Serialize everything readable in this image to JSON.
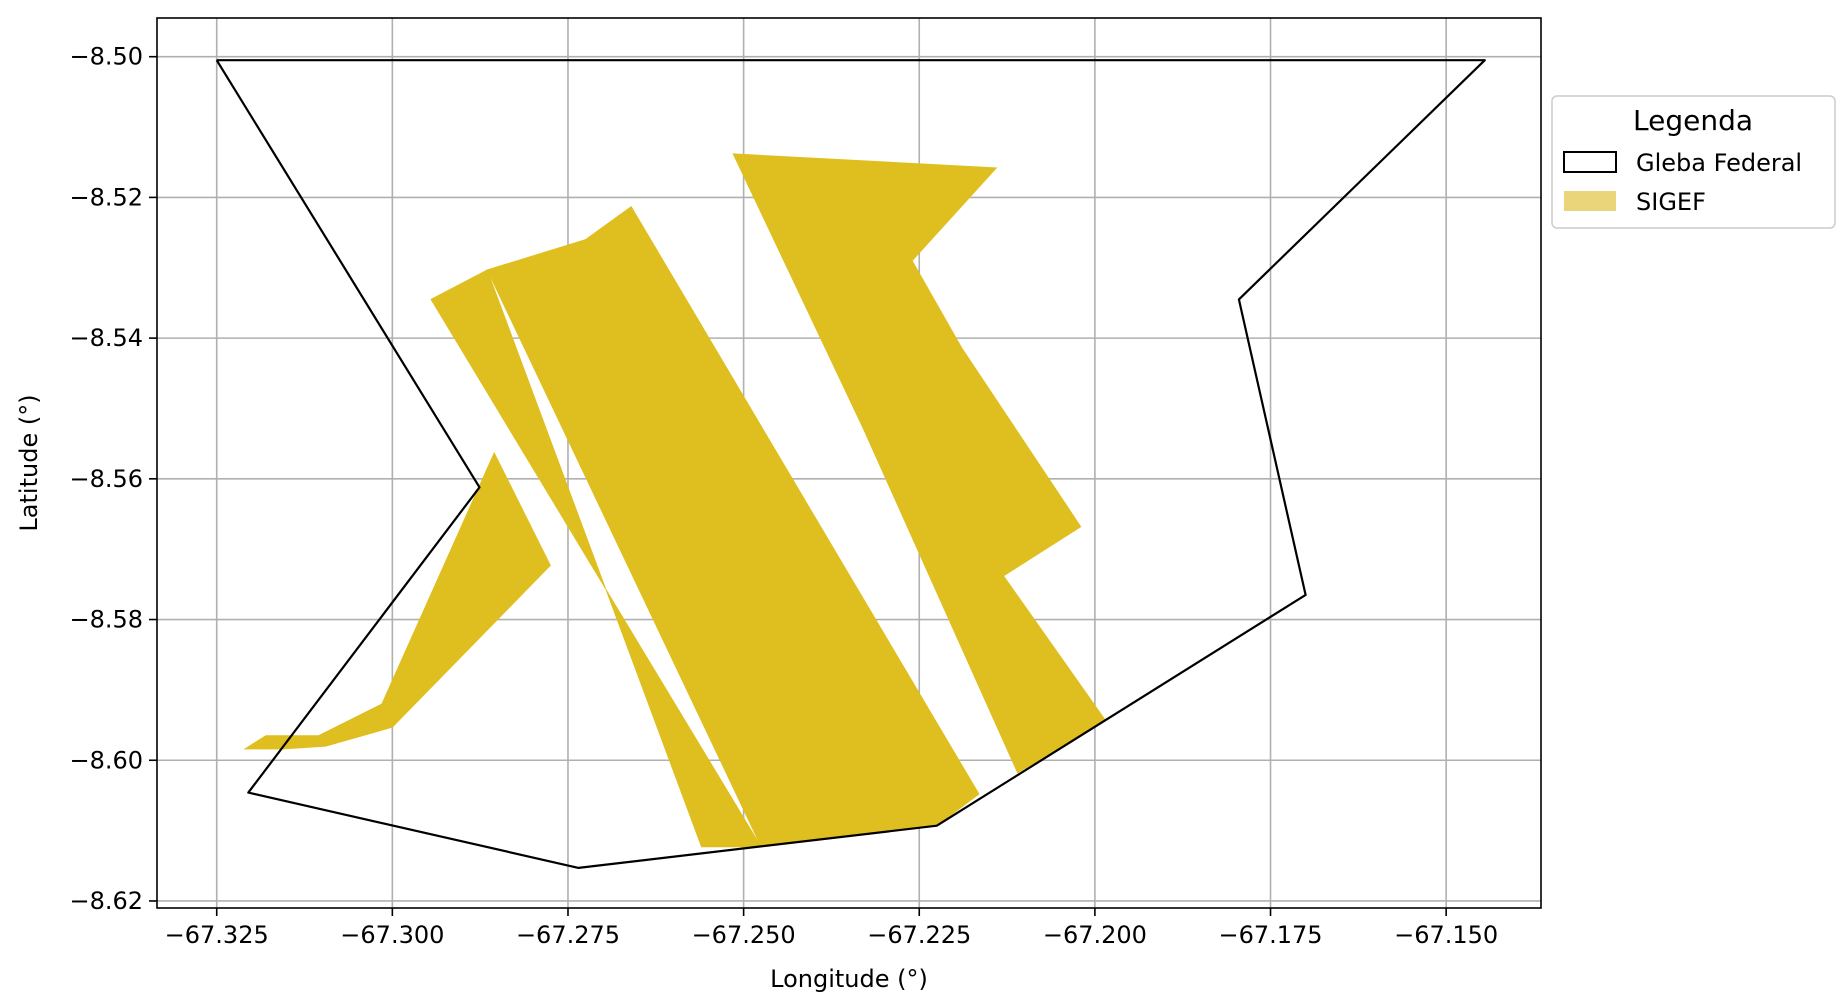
{
  "chart_data": {
    "type": "map",
    "xlabel": "Longitude (°)",
    "ylabel": "Latitude (°)",
    "xlim": [
      -67.3335,
      -67.1365
    ],
    "ylim": [
      -8.621,
      -8.4945
    ],
    "grid": true,
    "x_ticks": [
      -67.325,
      -67.3,
      -67.275,
      -67.25,
      -67.225,
      -67.2,
      -67.175,
      -67.15
    ],
    "x_tick_labels": [
      "−67.325",
      "−67.300",
      "−67.275",
      "−67.250",
      "−67.225",
      "−67.200",
      "−67.175",
      "−67.150"
    ],
    "y_ticks": [
      -8.5,
      -8.52,
      -8.54,
      -8.56,
      -8.58,
      -8.6,
      -8.62
    ],
    "y_tick_labels": [
      "−8.50",
      "−8.52",
      "−8.54",
      "−8.56",
      "−8.58",
      "−8.60",
      "−8.62"
    ],
    "legend": {
      "title": "Legenda",
      "position": "outside-upper-right",
      "entries": [
        {
          "label": "Gleba Federal",
          "style": "outline",
          "color": "#000000"
        },
        {
          "label": "SIGEF",
          "style": "fill",
          "color": "#ebd57b"
        }
      ]
    },
    "gleba_federal": {
      "name": "Gleba Federal",
      "stroke": "#000000",
      "coords": [
        [
          -67.325,
          -8.5005
        ],
        [
          -67.1445,
          -8.5005
        ],
        [
          -67.1795,
          -8.5345
        ],
        [
          -67.17,
          -8.5765
        ],
        [
          -67.2225,
          -8.6093
        ],
        [
          -67.2735,
          -8.6153
        ],
        [
          -67.3205,
          -8.6046
        ],
        [
          -67.2876,
          -8.5612
        ],
        [
          -67.325,
          -8.5005
        ]
      ]
    },
    "sigef": {
      "name": "SIGEF",
      "fill": "#dfbe1f",
      "parcels": [
        [
          [
            -67.2945,
            -8.5345
          ],
          [
            -67.2865,
            -8.5303
          ],
          [
            -67.256,
            -8.6123
          ],
          [
            -67.2475,
            -8.6123
          ]
        ],
        [
          [
            -67.2865,
            -8.5303
          ],
          [
            -67.2725,
            -8.526
          ],
          [
            -67.2225,
            -8.6093
          ],
          [
            -67.2475,
            -8.6123
          ]
        ],
        [
          [
            -67.2725,
            -8.526
          ],
          [
            -67.266,
            -8.5213
          ],
          [
            -67.2165,
            -8.6048
          ],
          [
            -67.2225,
            -8.6093
          ]
        ],
        [
          [
            -67.2515,
            -8.5138
          ],
          [
            -67.214,
            -8.5158
          ],
          [
            -67.226,
            -8.529
          ],
          [
            -67.219,
            -8.5413
          ],
          [
            -67.233,
            -8.5528
          ]
        ],
        [
          [
            -67.233,
            -8.5528
          ],
          [
            -67.219,
            -8.5413
          ],
          [
            -67.202,
            -8.5668
          ],
          [
            -67.213,
            -8.5738
          ],
          [
            -67.1985,
            -8.5943
          ],
          [
            -67.211,
            -8.6018
          ]
        ],
        [
          [
            -67.2855,
            -8.5563
          ],
          [
            -67.2775,
            -8.5723
          ],
          [
            -67.3,
            -8.5953
          ],
          [
            -67.3095,
            -8.598
          ],
          [
            -67.3155,
            -8.5984
          ],
          [
            -67.321,
            -8.5984
          ],
          [
            -67.318,
            -8.5965
          ],
          [
            -67.3105,
            -8.5965
          ],
          [
            -67.3015,
            -8.592
          ]
        ]
      ]
    }
  }
}
